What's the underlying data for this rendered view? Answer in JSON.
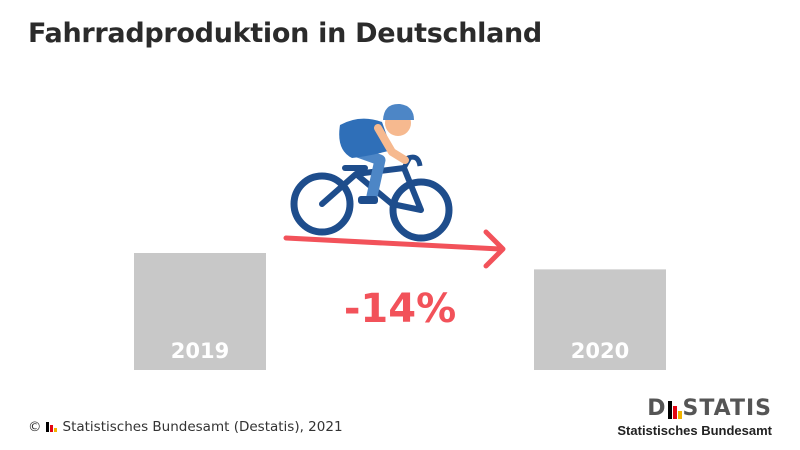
{
  "title": "Fahrradproduktion in Deutschland",
  "chart_data": {
    "type": "bar",
    "categories": [
      "2019",
      "2020"
    ],
    "values": [
      100,
      86
    ],
    "change_label": "-14%",
    "title": "Fahrradproduktion in Deutschland",
    "xlabel": "",
    "ylabel": "",
    "grid": false,
    "colors": {
      "bar": "#c8c8c8",
      "bar_label": "#ffffff",
      "change": "#f2525a"
    }
  },
  "footer": {
    "copyright": "©",
    "source": "Statistisches Bundesamt (Destatis), 2021"
  },
  "logo": {
    "d": "D",
    "rest": "STATIS",
    "subtitle": "Statistisches Bundesamt",
    "bar_colors": [
      "#000000",
      "#e30613",
      "#f2b400"
    ]
  },
  "icons": [
    "cyclist-icon"
  ]
}
